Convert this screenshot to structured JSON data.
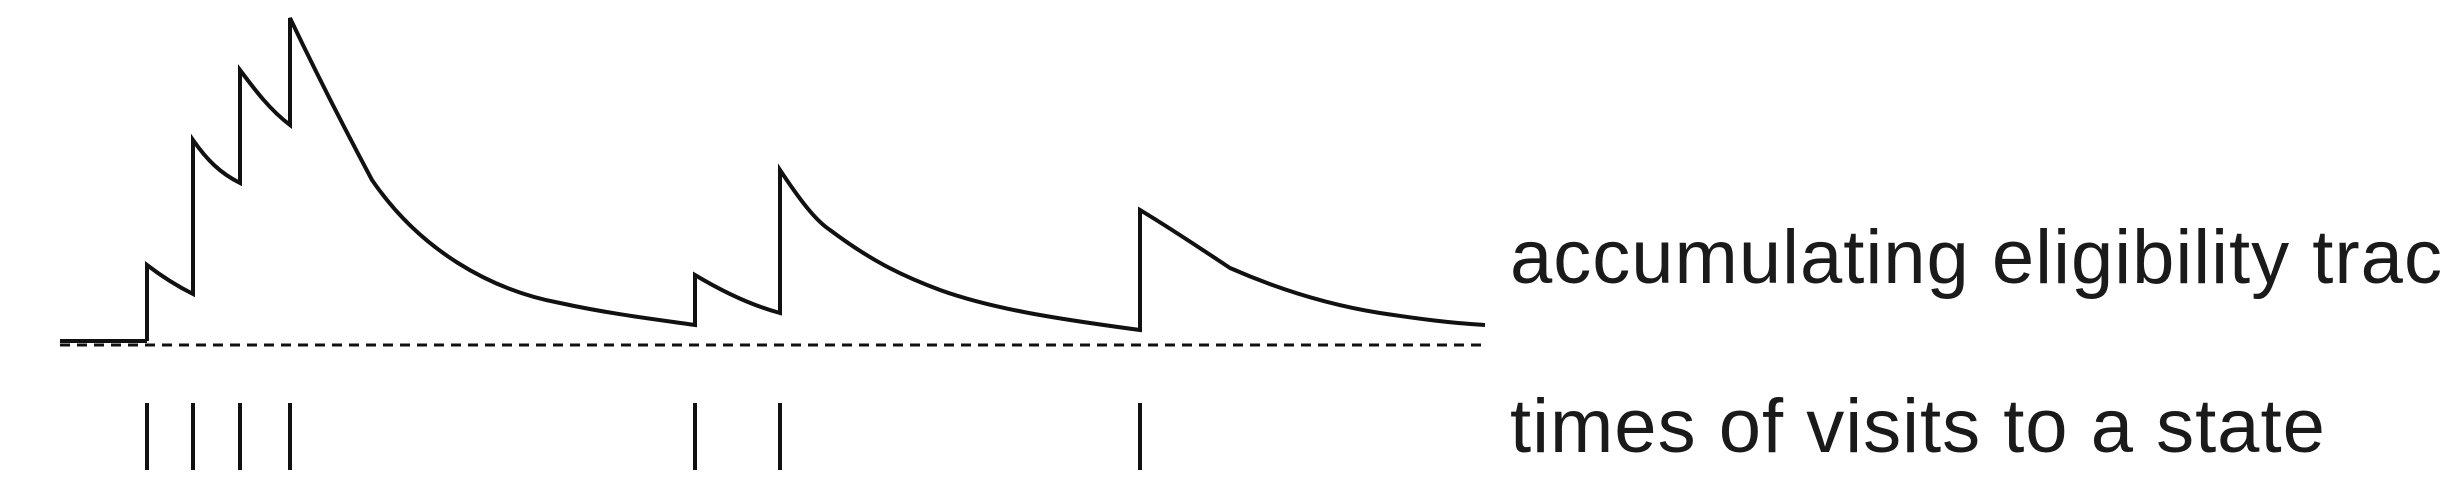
{
  "diagram": {
    "trace_label": "accumulating eligibility trace",
    "visits_label": "times of visits to a state"
  },
  "colors": {
    "line": "#111111",
    "text": "#1a1a1a",
    "background": "#ffffff"
  }
}
